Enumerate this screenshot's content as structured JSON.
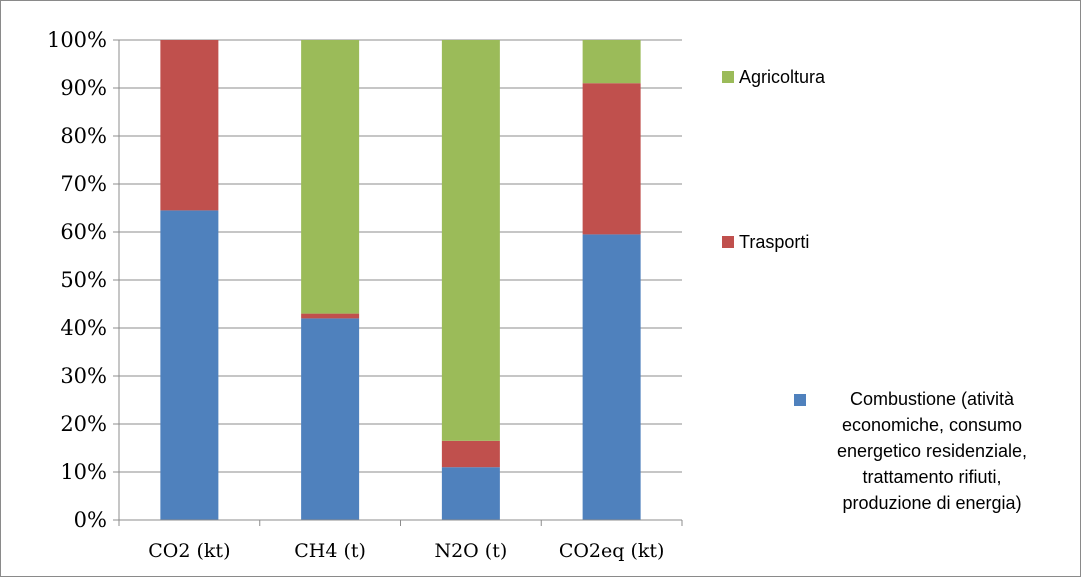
{
  "chart_data": {
    "type": "bar",
    "stacked": "percent",
    "categories": [
      "CO2 (kt)",
      "CH4 (t)",
      "N2O (t)",
      "CO2eq (kt)"
    ],
    "series": [
      {
        "name": "Combustione (atività economiche, consumo energetico residenziale, trattamento rifiuti, produzione di energia)",
        "values": [
          64.5,
          42,
          11,
          59.5
        ],
        "color": "#4f81bd"
      },
      {
        "name": "Trasporti",
        "values": [
          35.5,
          1,
          5.5,
          31.5
        ],
        "color": "#c0504d"
      },
      {
        "name": "Agricoltura",
        "values": [
          0,
          57,
          83.5,
          9
        ],
        "color": "#9bbb59"
      }
    ],
    "y_ticks": [
      "0%",
      "10%",
      "20%",
      "30%",
      "40%",
      "50%",
      "60%",
      "70%",
      "80%",
      "90%",
      "100%"
    ],
    "ylim": [
      0,
      100
    ],
    "grid": true,
    "legend_position": "right",
    "legend_lines": {
      "agricoltura": [
        "Agricoltura"
      ],
      "trasporti": [
        "Trasporti"
      ],
      "combustione": [
        "Combustione (atività",
        "economiche, consumo",
        "energetico residenziale,",
        "trattamento rifiuti,",
        "produzione di energia)"
      ]
    }
  }
}
